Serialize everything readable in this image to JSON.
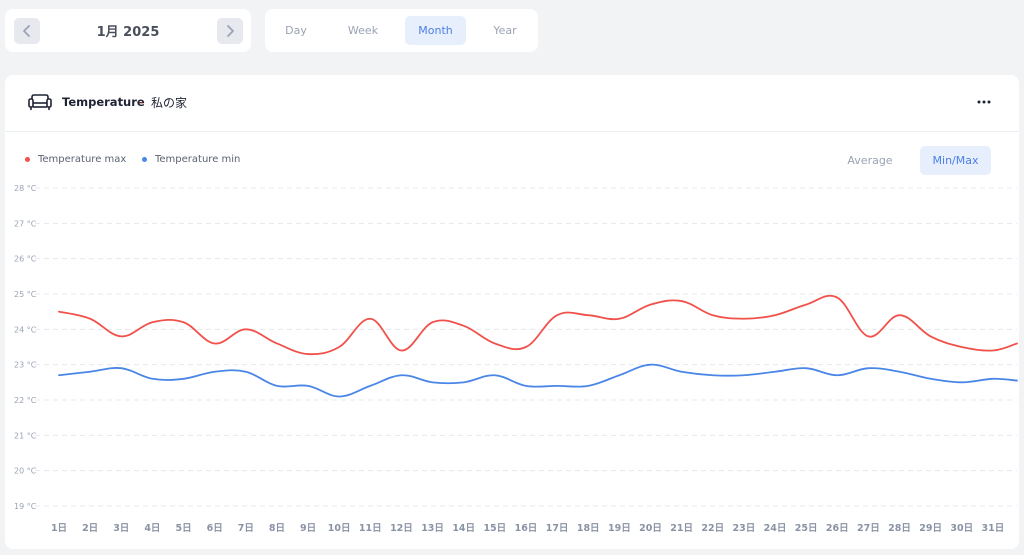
{
  "header": {
    "date_label": "1月 2025",
    "prev_icon": "chevron-left-icon",
    "next_icon": "chevron-right-icon"
  },
  "period_tabs": {
    "items": [
      {
        "label": "Day"
      },
      {
        "label": "Week"
      },
      {
        "label": "Month"
      },
      {
        "label": "Year"
      }
    ],
    "active": "Month"
  },
  "card": {
    "icon": "sofa-icon",
    "title": "Temperature",
    "separator": "-",
    "subtitle": "私の家",
    "menu_icon": "more-icon",
    "modes": {
      "average": "Average",
      "minmax": "Min/Max",
      "active": "Min/Max"
    }
  },
  "colors": {
    "max": "#f0514a",
    "min": "#4a86e8",
    "accent": "#4a7fe6"
  },
  "chart_data": {
    "type": "line",
    "categories": [
      "1日",
      "2日",
      "3日",
      "4日",
      "5日",
      "6日",
      "7日",
      "8日",
      "9日",
      "10日",
      "11日",
      "12日",
      "13日",
      "14日",
      "15日",
      "16日",
      "17日",
      "18日",
      "19日",
      "20日",
      "21日",
      "22日",
      "23日",
      "24日",
      "25日",
      "26日",
      "27日",
      "28日",
      "29日",
      "30日",
      "31日"
    ],
    "y_tick_labels": [
      "28 °C",
      "27 °C",
      "26 °C",
      "25 °C",
      "24 °C",
      "23 °C",
      "22 °C",
      "21 °C",
      "20 °C",
      "19 °C"
    ],
    "ylim": [
      19,
      28
    ],
    "grid": true,
    "legend_position": "top-left",
    "series": [
      {
        "name": "Temperature max",
        "values": [
          24.5,
          24.3,
          23.8,
          24.2,
          24.2,
          23.6,
          24.0,
          23.6,
          23.3,
          23.5,
          24.3,
          23.4,
          24.2,
          24.1,
          23.6,
          23.5,
          24.4,
          24.4,
          24.3,
          24.7,
          24.8,
          24.4,
          24.3,
          24.4,
          24.7,
          24.9,
          23.8,
          24.4,
          23.8,
          23.5,
          23.4
        ],
        "end_value": 23.6
      },
      {
        "name": "Temperature min",
        "values": [
          22.7,
          22.8,
          22.9,
          22.6,
          22.6,
          22.8,
          22.8,
          22.4,
          22.4,
          22.1,
          22.4,
          22.7,
          22.5,
          22.5,
          22.7,
          22.4,
          22.4,
          22.4,
          22.7,
          23.0,
          22.8,
          22.7,
          22.7,
          22.8,
          22.9,
          22.7,
          22.9,
          22.8,
          22.6,
          22.5,
          22.6
        ],
        "end_value": 22.55
      }
    ]
  }
}
